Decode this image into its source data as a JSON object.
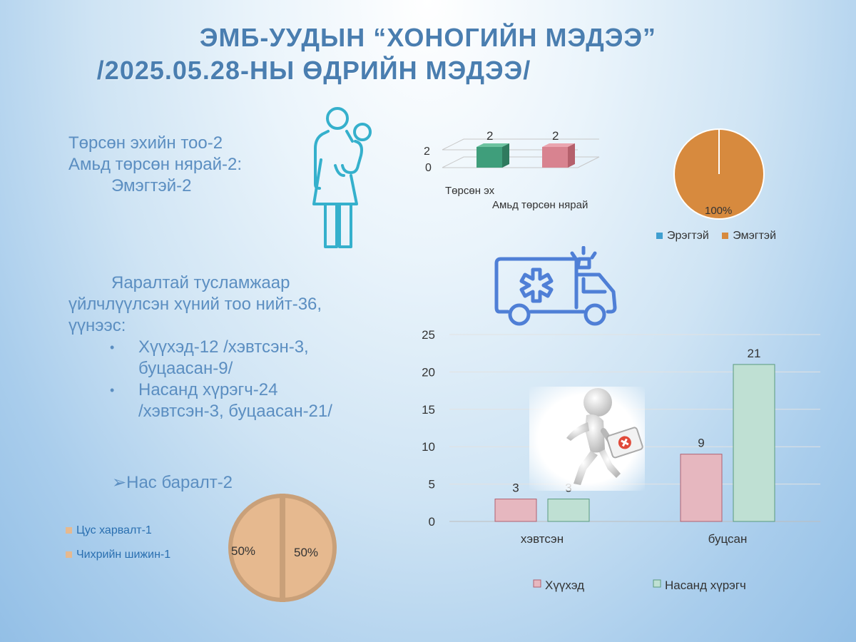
{
  "title": {
    "line1": "ЭМБ-УУДЫН “ХОНОГИЙН МЭДЭЭ”",
    "line2": "/2025.05.28-НЫ ӨДРИЙН МЭДЭЭ/"
  },
  "births": {
    "line1": "Төрсөн эхийн тоо-2",
    "line2": "Амьд төрсөн нярай-2:",
    "line3": "Эмэгтэй-2"
  },
  "emergency": {
    "line1": "Яаралтай тусламжаар",
    "line2": "үйлчлүүлсэн хүний тоо нийт-36,",
    "line3": "үүнээс:",
    "bullets": [
      {
        "line1": "Хүүхэд-12 /хэвтсэн-3,",
        "line2": "буцаасан-9/"
      },
      {
        "line1": "Насанд хүрэгч-24",
        "line2": "/хэвтсэн-3, буцаасан-21/"
      }
    ]
  },
  "deaths": {
    "label": "Нас баралт-2"
  },
  "colors": {
    "title": "#4a7eb0",
    "text": "#5b8ec1",
    "mother_bar": "#3f9e7b",
    "newborn_bar": "#d88390",
    "pie_female": "#d78a3e",
    "pie_male": "#3f9fd0",
    "child_bar": "#e6b7bf",
    "adult_bar": "#bfe0d3",
    "death_pie": "#e6b98f"
  },
  "icons": {
    "mother": "mother-child-icon",
    "ambulance": "ambulance-icon",
    "runner": "medic-runner-image"
  },
  "chart_data": [
    {
      "type": "bar",
      "subtype": "3d-column",
      "categories": [
        "Төрсөн эх",
        "Амьд төрсөн нярай"
      ],
      "values": [
        2,
        2
      ],
      "data_labels": [
        "2",
        "2"
      ],
      "y_ticks": [
        "0",
        "2"
      ],
      "ylim": [
        0,
        2
      ],
      "grid": true
    },
    {
      "type": "pie",
      "labels": [
        "Эрэгтэй",
        "Эмэгтэй"
      ],
      "values": [
        0,
        100
      ],
      "data_labels": [
        "",
        "100%"
      ],
      "legend": [
        "Эрэгтэй",
        "Эмэгтэй"
      ],
      "legend_position": "bottom"
    },
    {
      "type": "pie",
      "labels": [
        "Цус харвалт-1",
        "Чихрийн шижин-1"
      ],
      "values": [
        50,
        50
      ],
      "data_labels": [
        "50%",
        "50%"
      ],
      "legend": [
        "Цус харвалт-1",
        "Чихрийн шижин-1"
      ],
      "legend_position": "left"
    },
    {
      "type": "bar",
      "categories": [
        "хэвтсэн",
        "буцсан"
      ],
      "series": [
        {
          "name": "Хүүхэд",
          "values": [
            3,
            9
          ]
        },
        {
          "name": "Насанд хүрэгч",
          "values": [
            3,
            21
          ]
        }
      ],
      "y_ticks": [
        "0",
        "5",
        "10",
        "15",
        "20",
        "25"
      ],
      "ylim": [
        0,
        25
      ],
      "grid": true,
      "legend_position": "bottom"
    }
  ]
}
